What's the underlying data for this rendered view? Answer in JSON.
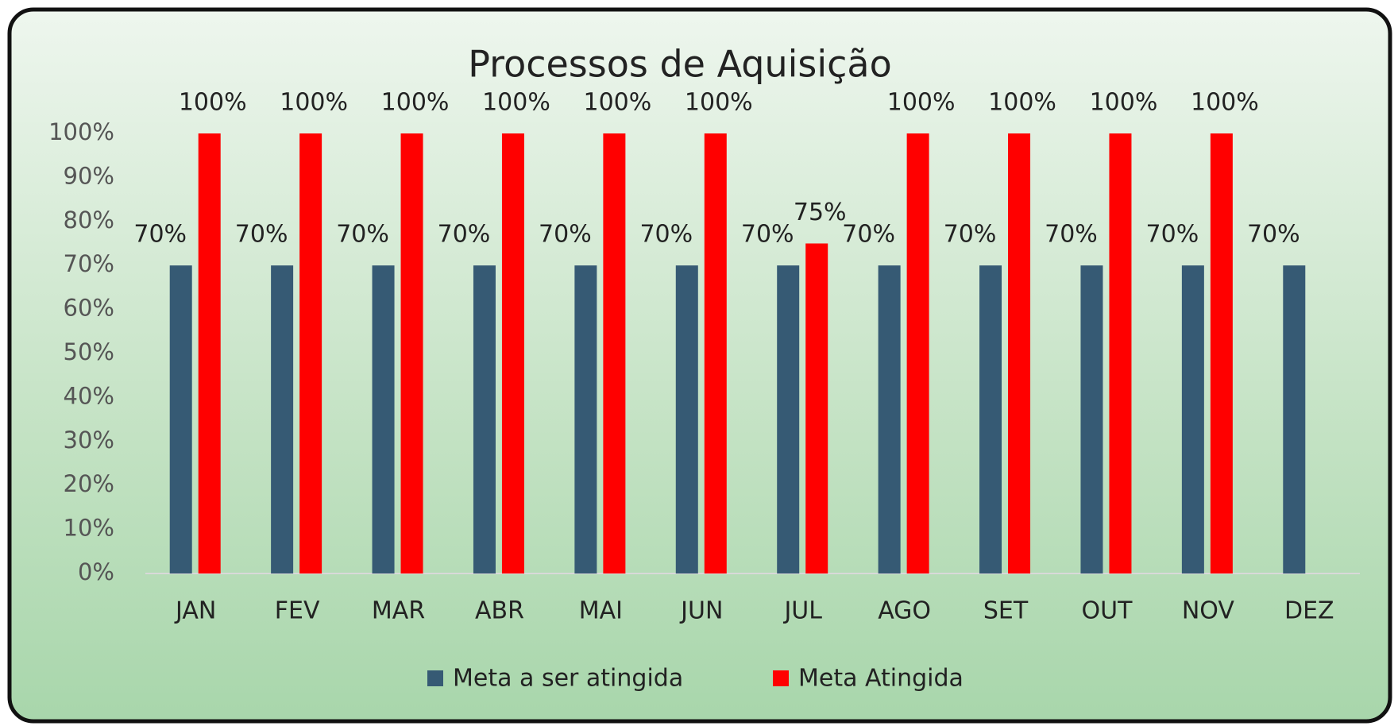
{
  "chart_data": {
    "type": "bar",
    "title": "Processos de Aquisição",
    "categories": [
      "JAN",
      "FEV",
      "MAR",
      "ABR",
      "MAI",
      "JUN",
      "JUL",
      "AGO",
      "SET",
      "OUT",
      "NOV",
      "DEZ"
    ],
    "series": [
      {
        "name": "Meta a ser atingida",
        "color": "#365a74",
        "values": [
          70,
          70,
          70,
          70,
          70,
          70,
          70,
          70,
          70,
          70,
          70,
          70
        ],
        "value_labels": [
          "70%",
          "70%",
          "70%",
          "70%",
          "70%",
          "70%",
          "70%",
          "70%",
          "70%",
          "70%",
          "70%",
          "70%"
        ]
      },
      {
        "name": "Meta Atingida",
        "color": "#ff0000",
        "values": [
          100,
          100,
          100,
          100,
          100,
          100,
          75,
          100,
          100,
          100,
          100,
          null
        ],
        "value_labels": [
          "100%",
          "100%",
          "100%",
          "100%",
          "100%",
          "100%",
          "75%",
          "100%",
          "100%",
          "100%",
          "100%",
          null
        ]
      }
    ],
    "ylim": [
      0,
      100
    ],
    "yticks": [
      {
        "value": 0,
        "label": "0%"
      },
      {
        "value": 10,
        "label": "10%"
      },
      {
        "value": 20,
        "label": "20%"
      },
      {
        "value": 30,
        "label": "30%"
      },
      {
        "value": 40,
        "label": "40%"
      },
      {
        "value": 50,
        "label": "50%"
      },
      {
        "value": 60,
        "label": "60%"
      },
      {
        "value": 70,
        "label": "70%"
      },
      {
        "value": 80,
        "label": "80%"
      },
      {
        "value": 90,
        "label": "90%"
      },
      {
        "value": 100,
        "label": "100%"
      }
    ],
    "grid": false,
    "legend": "bottom"
  }
}
